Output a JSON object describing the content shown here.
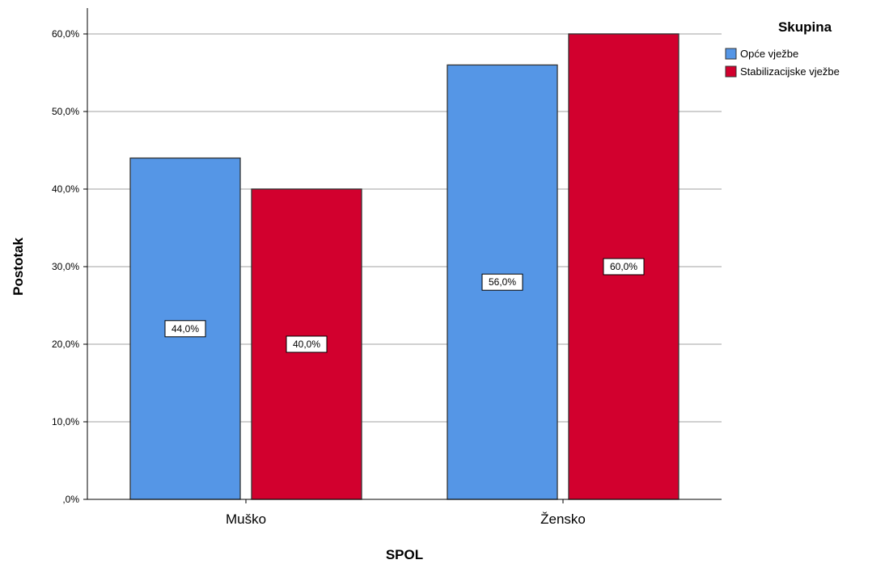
{
  "chart_data": {
    "type": "bar",
    "xlabel": "SPOL",
    "ylabel": "Postotak",
    "categories": [
      "Muško",
      "Žensko"
    ],
    "series": [
      {
        "name": "Opće vježbe",
        "values": [
          44.0,
          56.0
        ],
        "labels": [
          "44,0%",
          "56,0%"
        ],
        "color": "#5596e6"
      },
      {
        "name": "Stabilizacijske vježbe",
        "values": [
          40.0,
          60.0
        ],
        "labels": [
          "40,0%",
          "60,0%"
        ],
        "color": "#d2002e"
      }
    ],
    "ylim": [
      0,
      60
    ],
    "yticks": [
      0,
      10,
      20,
      30,
      40,
      50,
      60
    ],
    "ytick_labels": [
      ",0%",
      "10,0%",
      "20,0%",
      "30,0%",
      "40,0%",
      "50,0%",
      "60,0%"
    ],
    "grid": true,
    "legend": {
      "title": "Skupina",
      "position": "top-right"
    }
  }
}
